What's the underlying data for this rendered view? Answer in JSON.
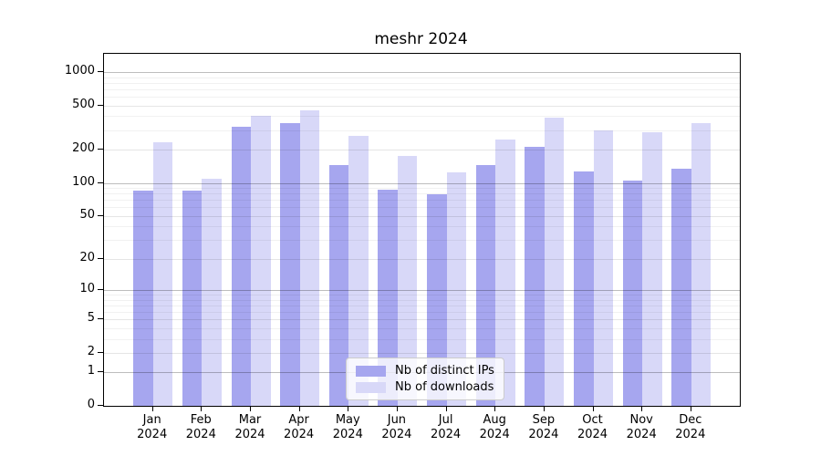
{
  "title": "meshr 2024",
  "chart_data": {
    "type": "bar",
    "title": "meshr 2024",
    "categories": [
      "Jan",
      "Feb",
      "Mar",
      "Apr",
      "May",
      "Jun",
      "Jul",
      "Aug",
      "Sep",
      "Oct",
      "Nov",
      "Dec"
    ],
    "year": "2024",
    "series": [
      {
        "name": "Nb of distinct IPs",
        "color": "#a6a6ef",
        "values": [
          85,
          85,
          320,
          350,
          145,
          87,
          79,
          145,
          210,
          128,
          105,
          135
        ]
      },
      {
        "name": "Nb of downloads",
        "color": "#d8d8f8",
        "values": [
          235,
          110,
          405,
          455,
          265,
          175,
          125,
          245,
          385,
          300,
          285,
          350
        ]
      }
    ],
    "y_scale": "log10(1+y)",
    "y_ticks": [
      1000,
      500,
      200,
      100,
      50,
      20,
      10,
      5,
      2,
      1,
      0
    ],
    "ylim": [
      0,
      1480
    ],
    "grid": true,
    "legend_position": "inside-bottom-center",
    "xlabel": "",
    "ylabel": ""
  }
}
